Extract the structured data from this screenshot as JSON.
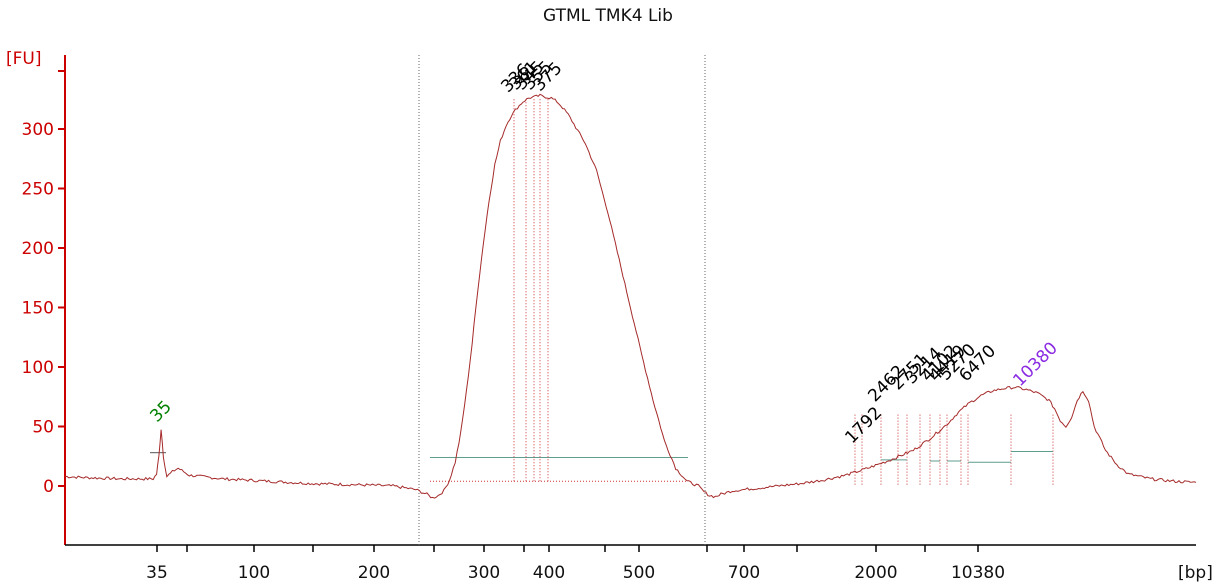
{
  "chart_data": {
    "type": "line",
    "title": "GTML TMK4 Lib",
    "ylabel": "[FU]",
    "xlabel": "[bp]",
    "ylim": [
      -50,
      340
    ],
    "yticks": [
      0,
      50,
      100,
      150,
      200,
      250,
      300
    ],
    "xticks": [
      "35",
      "",
      "100",
      "",
      "200",
      "",
      "300",
      "",
      "400",
      "",
      "500",
      "",
      "700",
      "",
      "2000",
      "",
      "10380"
    ],
    "grid": false,
    "legend": "none",
    "colors": {
      "trace": "#a52a2a",
      "axis": "#cc0000",
      "marker_peak": "#008000",
      "upper_marker_peak": "#8a2be2",
      "region_fill_line": "#5f9e8f",
      "text": "#000000"
    },
    "peak_labels": [
      {
        "text": "35",
        "color": "green",
        "fu": 48
      },
      {
        "text": "336",
        "color": "black",
        "fu": 325
      },
      {
        "text": "361",
        "color": "black",
        "fu": 327
      },
      {
        "text": "345",
        "color": "black",
        "fu": 327
      },
      {
        "text": "355",
        "color": "black",
        "fu": 327
      },
      {
        "text": "375",
        "color": "black",
        "fu": 326
      },
      {
        "text": "1792",
        "color": "black",
        "fu": 30
      },
      {
        "text": "2462",
        "color": "black",
        "fu": 65
      },
      {
        "text": "2751",
        "color": "black",
        "fu": 75
      },
      {
        "text": "3214",
        "color": "black",
        "fu": 80
      },
      {
        "text": "4102",
        "color": "black",
        "fu": 82
      },
      {
        "text": "4419",
        "color": "black",
        "fu": 82
      },
      {
        "text": "5270",
        "color": "black",
        "fu": 83
      },
      {
        "text": "6470",
        "color": "black",
        "fu": 82
      },
      {
        "text": "10380",
        "color": "purple",
        "fu": 78
      }
    ],
    "series": [
      {
        "values": [
          [
            0,
            8
          ],
          [
            0.02,
            7
          ],
          [
            0.05,
            6
          ],
          [
            0.078,
            6
          ],
          [
            0.081,
            10
          ],
          [
            0.083,
            25
          ],
          [
            0.085,
            48
          ],
          [
            0.087,
            25
          ],
          [
            0.09,
            8
          ],
          [
            0.095,
            12
          ],
          [
            0.1,
            15
          ],
          [
            0.11,
            9
          ],
          [
            0.14,
            6
          ],
          [
            0.18,
            4
          ],
          [
            0.22,
            2
          ],
          [
            0.26,
            1
          ],
          [
            0.29,
            0
          ],
          [
            0.31,
            -3
          ],
          [
            0.32,
            -7
          ],
          [
            0.325,
            -10
          ],
          [
            0.33,
            -8
          ],
          [
            0.335,
            -4
          ],
          [
            0.34,
            5
          ],
          [
            0.345,
            20
          ],
          [
            0.35,
            45
          ],
          [
            0.355,
            80
          ],
          [
            0.36,
            120
          ],
          [
            0.365,
            165
          ],
          [
            0.37,
            205
          ],
          [
            0.375,
            240
          ],
          [
            0.38,
            270
          ],
          [
            0.385,
            290
          ],
          [
            0.39,
            303
          ],
          [
            0.395,
            312
          ],
          [
            0.4,
            318
          ],
          [
            0.405,
            323
          ],
          [
            0.41,
            326
          ],
          [
            0.415,
            327
          ],
          [
            0.42,
            328
          ],
          [
            0.425,
            327
          ],
          [
            0.43,
            326
          ],
          [
            0.435,
            323
          ],
          [
            0.44,
            318
          ],
          [
            0.445,
            312
          ],
          [
            0.45,
            304
          ],
          [
            0.46,
            288
          ],
          [
            0.47,
            265
          ],
          [
            0.48,
            230
          ],
          [
            0.49,
            190
          ],
          [
            0.5,
            150
          ],
          [
            0.51,
            110
          ],
          [
            0.52,
            72
          ],
          [
            0.53,
            38
          ],
          [
            0.54,
            15
          ],
          [
            0.55,
            4
          ],
          [
            0.56,
            0
          ],
          [
            0.565,
            -5
          ],
          [
            0.57,
            -8
          ],
          [
            0.575,
            -9
          ],
          [
            0.58,
            -7
          ],
          [
            0.59,
            -4
          ],
          [
            0.61,
            -2
          ],
          [
            0.63,
            0
          ],
          [
            0.65,
            2
          ],
          [
            0.67,
            5
          ],
          [
            0.69,
            9
          ],
          [
            0.71,
            15
          ],
          [
            0.73,
            22
          ],
          [
            0.75,
            30
          ],
          [
            0.765,
            40
          ],
          [
            0.78,
            52
          ],
          [
            0.79,
            62
          ],
          [
            0.8,
            70
          ],
          [
            0.81,
            76
          ],
          [
            0.82,
            80
          ],
          [
            0.83,
            82
          ],
          [
            0.84,
            83
          ],
          [
            0.85,
            81
          ],
          [
            0.86,
            78
          ],
          [
            0.87,
            72
          ],
          [
            0.875,
            65
          ],
          [
            0.88,
            55
          ],
          [
            0.885,
            50
          ],
          [
            0.89,
            58
          ],
          [
            0.895,
            72
          ],
          [
            0.9,
            80
          ],
          [
            0.905,
            72
          ],
          [
            0.91,
            50
          ],
          [
            0.92,
            30
          ],
          [
            0.93,
            18
          ],
          [
            0.94,
            10
          ],
          [
            0.96,
            6
          ],
          [
            0.98,
            4
          ],
          [
            1.0,
            3
          ]
        ]
      }
    ]
  }
}
